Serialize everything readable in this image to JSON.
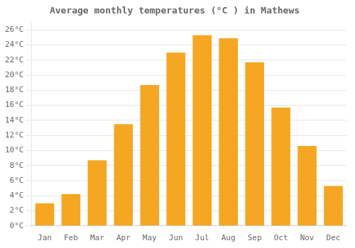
{
  "chart_data": {
    "type": "bar",
    "title": "Average monthly temperatures (°C ) in Mathews",
    "categories": [
      "Jan",
      "Feb",
      "Mar",
      "Apr",
      "May",
      "Jun",
      "Jul",
      "Aug",
      "Sep",
      "Oct",
      "Nov",
      "Dec"
    ],
    "values": [
      3.0,
      4.2,
      8.7,
      13.5,
      18.7,
      23.0,
      25.3,
      24.9,
      21.7,
      15.7,
      10.6,
      5.3
    ],
    "color": "#F5A623",
    "ylim": [
      0,
      27
    ],
    "yticks": [
      {
        "value": 0,
        "label": "0°C"
      },
      {
        "value": 2,
        "label": "2°C"
      },
      {
        "value": 4,
        "label": "4°C"
      },
      {
        "value": 6,
        "label": "6°C"
      },
      {
        "value": 8,
        "label": "8°C"
      },
      {
        "value": 10,
        "label": "10°C"
      },
      {
        "value": 12,
        "label": "12°C"
      },
      {
        "value": 14,
        "label": "14°C"
      },
      {
        "value": 16,
        "label": "16°C"
      },
      {
        "value": 18,
        "label": "18°C"
      },
      {
        "value": 20,
        "label": "20°C"
      },
      {
        "value": 22,
        "label": "22°C"
      },
      {
        "value": 24,
        "label": "24°C"
      },
      {
        "value": 26,
        "label": "26°C"
      }
    ],
    "grid": true
  }
}
